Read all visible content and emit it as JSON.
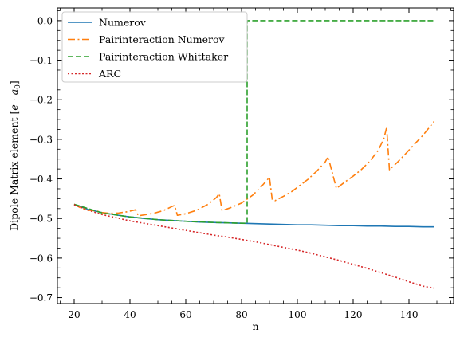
{
  "chart_data": {
    "type": "line",
    "title": "",
    "xlabel": "n",
    "ylabel": "Dipole Matrix element [e · a₀]",
    "xlim": [
      14,
      156
    ],
    "ylim": [
      -0.715,
      0.032
    ],
    "xticks": [
      20,
      40,
      60,
      80,
      100,
      120,
      140
    ],
    "xtick_labels": [
      "20",
      "40",
      "60",
      "80",
      "100",
      "120",
      "140"
    ],
    "yticks": [
      0.0,
      -0.1,
      -0.2,
      -0.3,
      -0.4,
      -0.5,
      -0.6,
      -0.7
    ],
    "ytick_labels": [
      "0.0",
      "−0.1",
      "−0.2",
      "−0.3",
      "−0.4",
      "−0.5",
      "−0.6",
      "−0.7"
    ],
    "grid": false,
    "legend": "top-left",
    "series": [
      {
        "name": "Numerov",
        "color": "#1f77b4",
        "dash": "solid",
        "x": [
          20,
          25,
          30,
          35,
          40,
          45,
          50,
          55,
          60,
          65,
          70,
          75,
          80,
          85,
          90,
          95,
          100,
          105,
          110,
          115,
          120,
          125,
          130,
          135,
          140,
          145,
          149
        ],
        "y": [
          -0.465,
          -0.477,
          -0.485,
          -0.491,
          -0.496,
          -0.5,
          -0.503,
          -0.505,
          -0.507,
          -0.509,
          -0.51,
          -0.511,
          -0.512,
          -0.513,
          -0.514,
          -0.515,
          -0.516,
          -0.516,
          -0.517,
          -0.518,
          -0.518,
          -0.519,
          -0.519,
          -0.52,
          -0.52,
          -0.521,
          -0.521
        ]
      },
      {
        "name": "Pairinteraction Numerov",
        "color": "#ff7f0e",
        "dash": "dashdot",
        "x": [
          20,
          22,
          25,
          28,
          30,
          33,
          36,
          39,
          42,
          43,
          46,
          49,
          52,
          55,
          56,
          57,
          60,
          64,
          68,
          71,
          72,
          73,
          76,
          80,
          84,
          87,
          90,
          91,
          92,
          95,
          98,
          101,
          104,
          107,
          110,
          111,
          114,
          117,
          120,
          123,
          126,
          129,
          131,
          132,
          133,
          136,
          139,
          142,
          145,
          149
        ],
        "y": [
          -0.464,
          -0.472,
          -0.479,
          -0.481,
          -0.485,
          -0.487,
          -0.486,
          -0.483,
          -0.478,
          -0.493,
          -0.49,
          -0.486,
          -0.48,
          -0.47,
          -0.467,
          -0.492,
          -0.488,
          -0.479,
          -0.464,
          -0.447,
          -0.437,
          -0.48,
          -0.473,
          -0.461,
          -0.441,
          -0.42,
          -0.396,
          -0.453,
          -0.455,
          -0.444,
          -0.432,
          -0.416,
          -0.4,
          -0.38,
          -0.357,
          -0.344,
          -0.424,
          -0.408,
          -0.393,
          -0.376,
          -0.355,
          -0.328,
          -0.298,
          -0.27,
          -0.377,
          -0.357,
          -0.335,
          -0.312,
          -0.29,
          -0.255
        ]
      },
      {
        "name": "Pairinteraction Whittaker",
        "color": "#2ca02c",
        "dash": "dashed",
        "x": [
          20,
          30,
          40,
          50,
          60,
          70,
          80,
          82,
          82,
          83,
          100,
          120,
          140,
          149
        ],
        "y": [
          -0.464,
          -0.486,
          -0.496,
          -0.503,
          -0.507,
          -0.51,
          -0.512,
          -0.512,
          0.0,
          0.0,
          0.0,
          0.0,
          0.0,
          0.0
        ]
      },
      {
        "name": "ARC",
        "color": "#d62728",
        "dash": "dotted",
        "x": [
          20,
          25,
          30,
          35,
          40,
          45,
          50,
          55,
          60,
          65,
          70,
          75,
          80,
          85,
          90,
          95,
          100,
          105,
          110,
          115,
          120,
          125,
          130,
          135,
          140,
          145,
          149
        ],
        "y": [
          -0.465,
          -0.479,
          -0.49,
          -0.498,
          -0.506,
          -0.512,
          -0.518,
          -0.524,
          -0.53,
          -0.536,
          -0.542,
          -0.547,
          -0.553,
          -0.559,
          -0.566,
          -0.573,
          -0.58,
          -0.588,
          -0.597,
          -0.606,
          -0.616,
          -0.626,
          -0.637,
          -0.648,
          -0.66,
          -0.671,
          -0.676
        ]
      }
    ]
  }
}
